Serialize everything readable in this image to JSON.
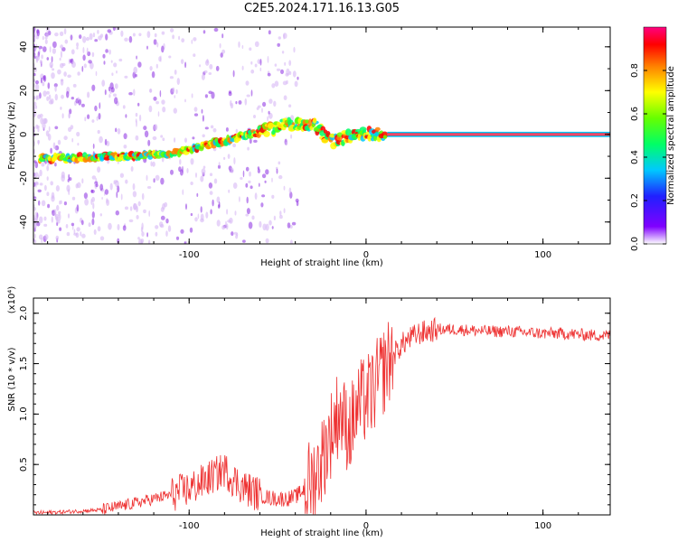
{
  "title": "C2E5.2024.171.16.13.G05",
  "colors": {
    "snr_line": "#ee3333",
    "axis": "#000000"
  },
  "chart_data": [
    {
      "type": "heatmap",
      "title": "C2E5.2024.171.16.13.G05",
      "xlabel": "Height of straight line (km)",
      "ylabel": "Frequency (Hz)",
      "xlim": [
        -188,
        138
      ],
      "ylim": [
        -50,
        49
      ],
      "xticks": [
        -100,
        0,
        100
      ],
      "xtick_labels": [
        "-100",
        "0",
        "100"
      ],
      "yticks": [
        -40,
        -20,
        0,
        20,
        40
      ],
      "ytick_labels": [
        "-40",
        "-20",
        "0",
        "20",
        "40"
      ],
      "colorbar": {
        "label": "Normalized spectral amplitude",
        "range": [
          0,
          1
        ],
        "ticks": [
          0.0,
          0.2,
          0.4,
          0.6,
          0.8
        ],
        "tick_labels": [
          "0.0",
          "0.2",
          "0.4",
          "0.6",
          "0.8"
        ]
      },
      "ridge": {
        "height_km": [
          -184,
          -170,
          -150,
          -130,
          -115,
          -100,
          -90,
          -80,
          -70,
          -60,
          -50,
          -42,
          -35,
          -28,
          -25,
          -20,
          -15,
          -10,
          -5,
          0,
          5,
          10,
          20,
          40,
          60,
          80,
          100,
          120,
          136
        ],
        "frequency_hz": [
          -11,
          -11,
          -10,
          -10,
          -9,
          -7,
          -5,
          -3,
          -1,
          1,
          3,
          5,
          5,
          4,
          1,
          -3,
          -2,
          -1,
          0,
          0,
          0,
          0,
          0,
          0,
          0,
          0,
          0,
          0,
          0
        ]
      }
    },
    {
      "type": "line",
      "title": "",
      "xlabel": "Height of straight line (km)",
      "ylabel": "SNR (10 * v/v)",
      "y_scale_label": "(x10⁴)",
      "xlim": [
        -188,
        138
      ],
      "ylim": [
        0,
        2.15
      ],
      "xticks": [
        -100,
        0,
        100
      ],
      "xtick_labels": [
        "-100",
        "0",
        "100"
      ],
      "yticks": [
        0.5,
        1.0,
        1.5,
        2.0
      ],
      "ytick_labels": [
        "0.5",
        "1.0",
        "1.5",
        "2.0"
      ],
      "series": [
        {
          "name": "SNR",
          "x": [
            -188,
            -170,
            -150,
            -140,
            -130,
            -120,
            -110,
            -100,
            -95,
            -90,
            -85,
            -80,
            -75,
            -70,
            -65,
            -60,
            -55,
            -50,
            -45,
            -40,
            -35,
            -30,
            -27,
            -24,
            -21,
            -18,
            -15,
            -12,
            -9,
            -6,
            -3,
            0,
            3,
            6,
            9,
            12,
            15,
            18,
            21,
            24,
            27,
            30,
            35,
            40,
            50,
            60,
            70,
            80,
            90,
            100,
            110,
            120,
            130,
            138
          ],
          "values": [
            0.02,
            0.03,
            0.05,
            0.08,
            0.12,
            0.16,
            0.2,
            0.26,
            0.3,
            0.35,
            0.4,
            0.45,
            0.35,
            0.28,
            0.24,
            0.2,
            0.17,
            0.16,
            0.16,
            0.18,
            0.25,
            0.35,
            0.45,
            0.6,
            0.75,
            0.9,
            1.05,
            0.9,
            0.85,
            1.0,
            1.1,
            1.15,
            1.2,
            1.3,
            1.4,
            1.5,
            1.58,
            1.64,
            1.7,
            1.74,
            1.77,
            1.8,
            1.82,
            1.84,
            1.84,
            1.83,
            1.82,
            1.82,
            1.81,
            1.8,
            1.8,
            1.79,
            1.78,
            1.78
          ]
        }
      ]
    }
  ]
}
